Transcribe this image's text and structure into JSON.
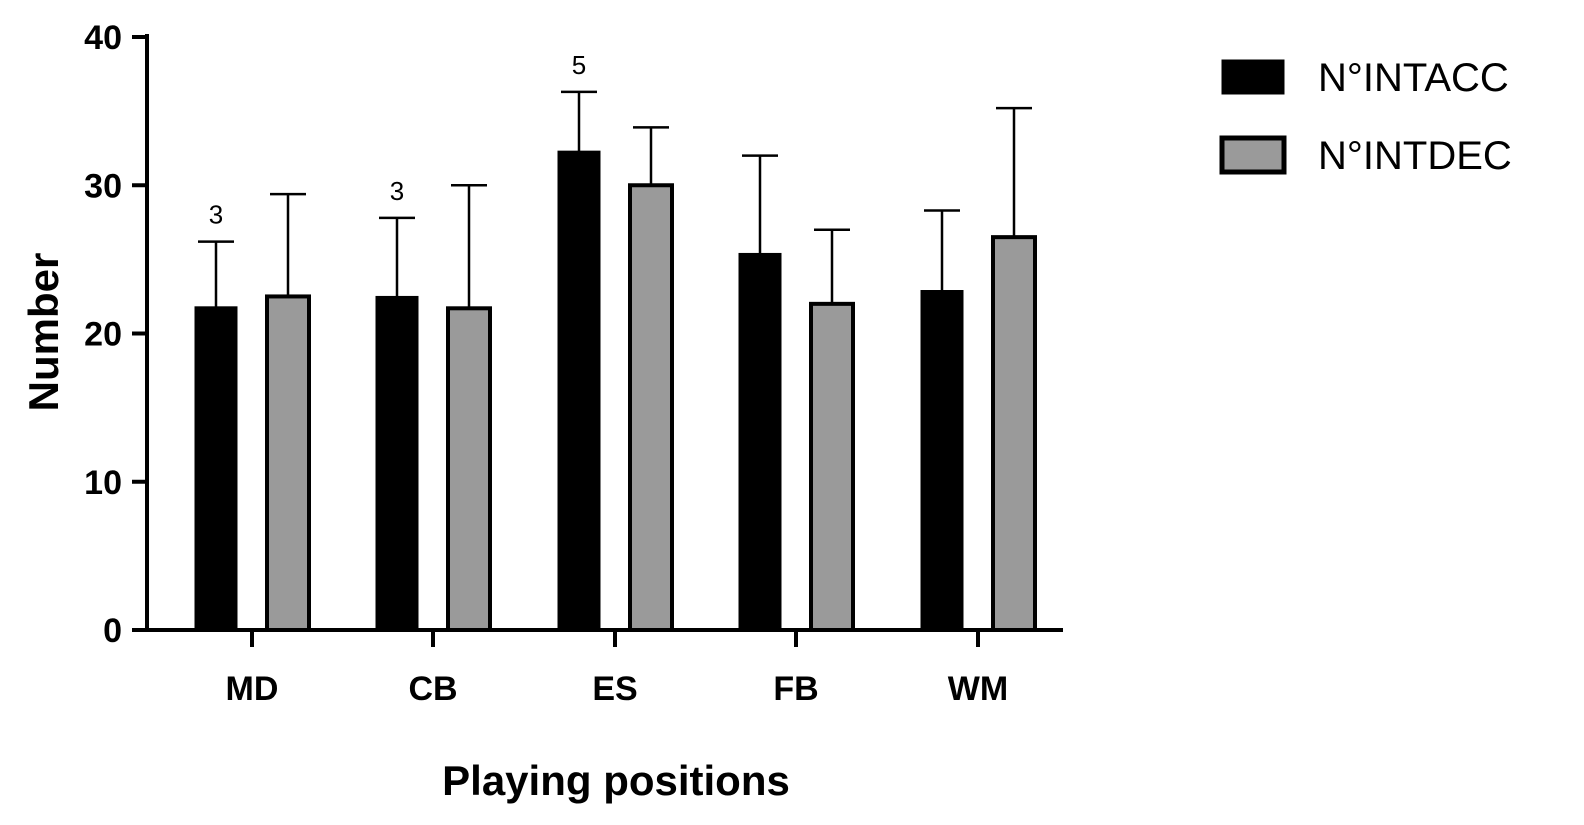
{
  "chart_data": {
    "type": "bar",
    "xlabel": "Playing positions",
    "ylabel": "Number",
    "ylim": [
      0,
      40
    ],
    "yticks": [
      0,
      10,
      20,
      30,
      40
    ],
    "grid": false,
    "legend_position": "top-right",
    "categories": [
      "MD",
      "CB",
      "ES",
      "FB",
      "WM"
    ],
    "series": [
      {
        "name": "N°INTACC",
        "color": "#000000",
        "values": [
          21.8,
          22.5,
          32.3,
          25.4,
          22.9
        ],
        "error_upper": [
          26.2,
          27.8,
          36.3,
          32.0,
          28.3
        ]
      },
      {
        "name": "N°INTDEC",
        "color": "#9a9a9a",
        "values": [
          22.5,
          21.7,
          30.0,
          22.0,
          26.5
        ],
        "error_upper": [
          29.4,
          30.0,
          33.9,
          27.0,
          35.2
        ]
      }
    ],
    "annotations": [
      {
        "category": "MD",
        "series": "N°INTACC",
        "text": "3"
      },
      {
        "category": "CB",
        "series": "N°INTACC",
        "text": "3"
      },
      {
        "category": "ES",
        "series": "N°INTACC",
        "text": "5"
      }
    ]
  }
}
